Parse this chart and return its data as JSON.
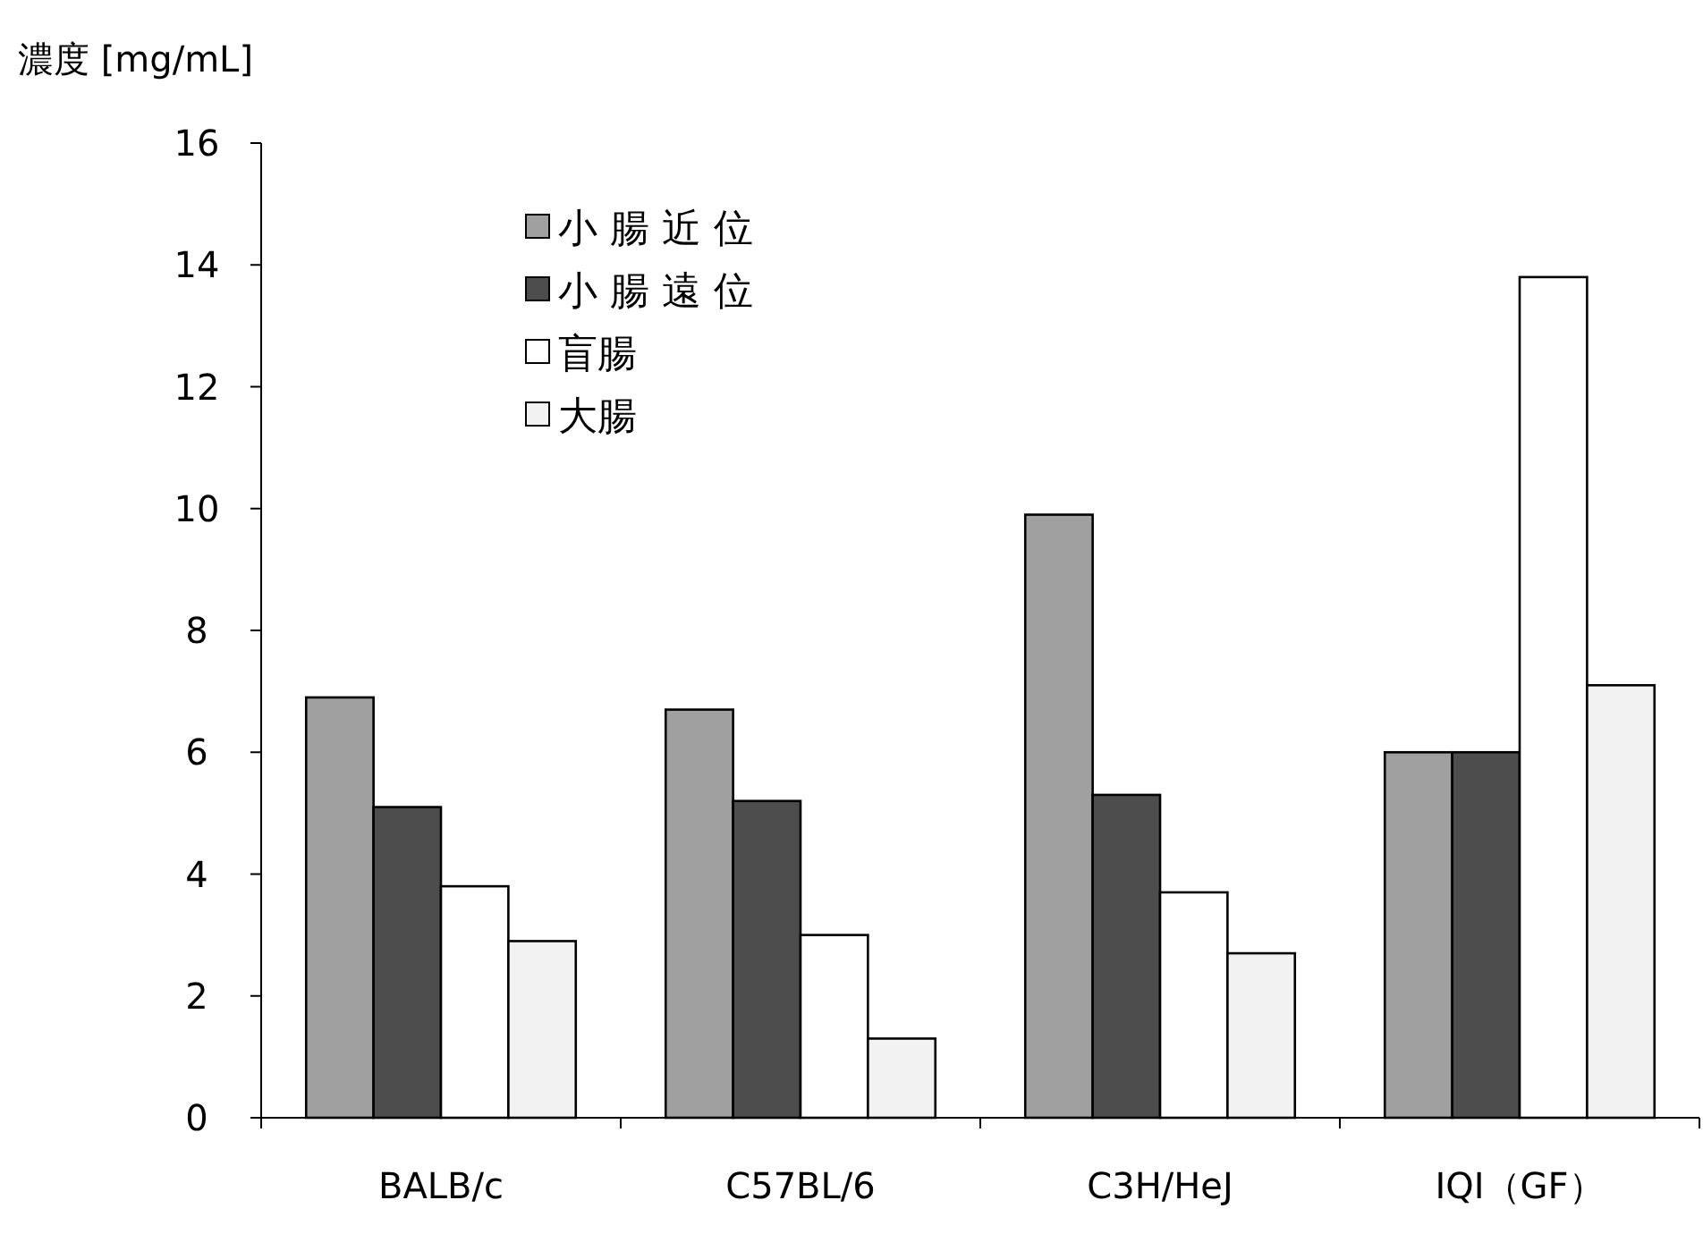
{
  "chart_data": {
    "type": "bar",
    "ylabel": "濃度 [mg/mL]",
    "categories": [
      "BALB/c",
      "C57BL/6",
      "C3H/HeJ",
      "IQI（GF）"
    ],
    "series": [
      {
        "name": "小 腸 近 位",
        "color": "#a0a0a0",
        "values": [
          6.9,
          6.7,
          9.9,
          6.0
        ]
      },
      {
        "name": "小 腸 遠 位",
        "color": "#4d4d4d",
        "values": [
          5.1,
          5.2,
          5.3,
          6.0
        ]
      },
      {
        "name": "盲腸",
        "color": "#ffffff",
        "values": [
          3.8,
          3.0,
          3.7,
          13.8
        ]
      },
      {
        "name": "大腸",
        "color": "#f2f2f2",
        "values": [
          2.9,
          1.3,
          2.7,
          7.1
        ]
      }
    ],
    "ylim": [
      0,
      16
    ],
    "yticks": [
      0,
      2,
      4,
      6,
      8,
      10,
      12,
      14,
      16
    ],
    "grid": false,
    "legend": "top left"
  }
}
